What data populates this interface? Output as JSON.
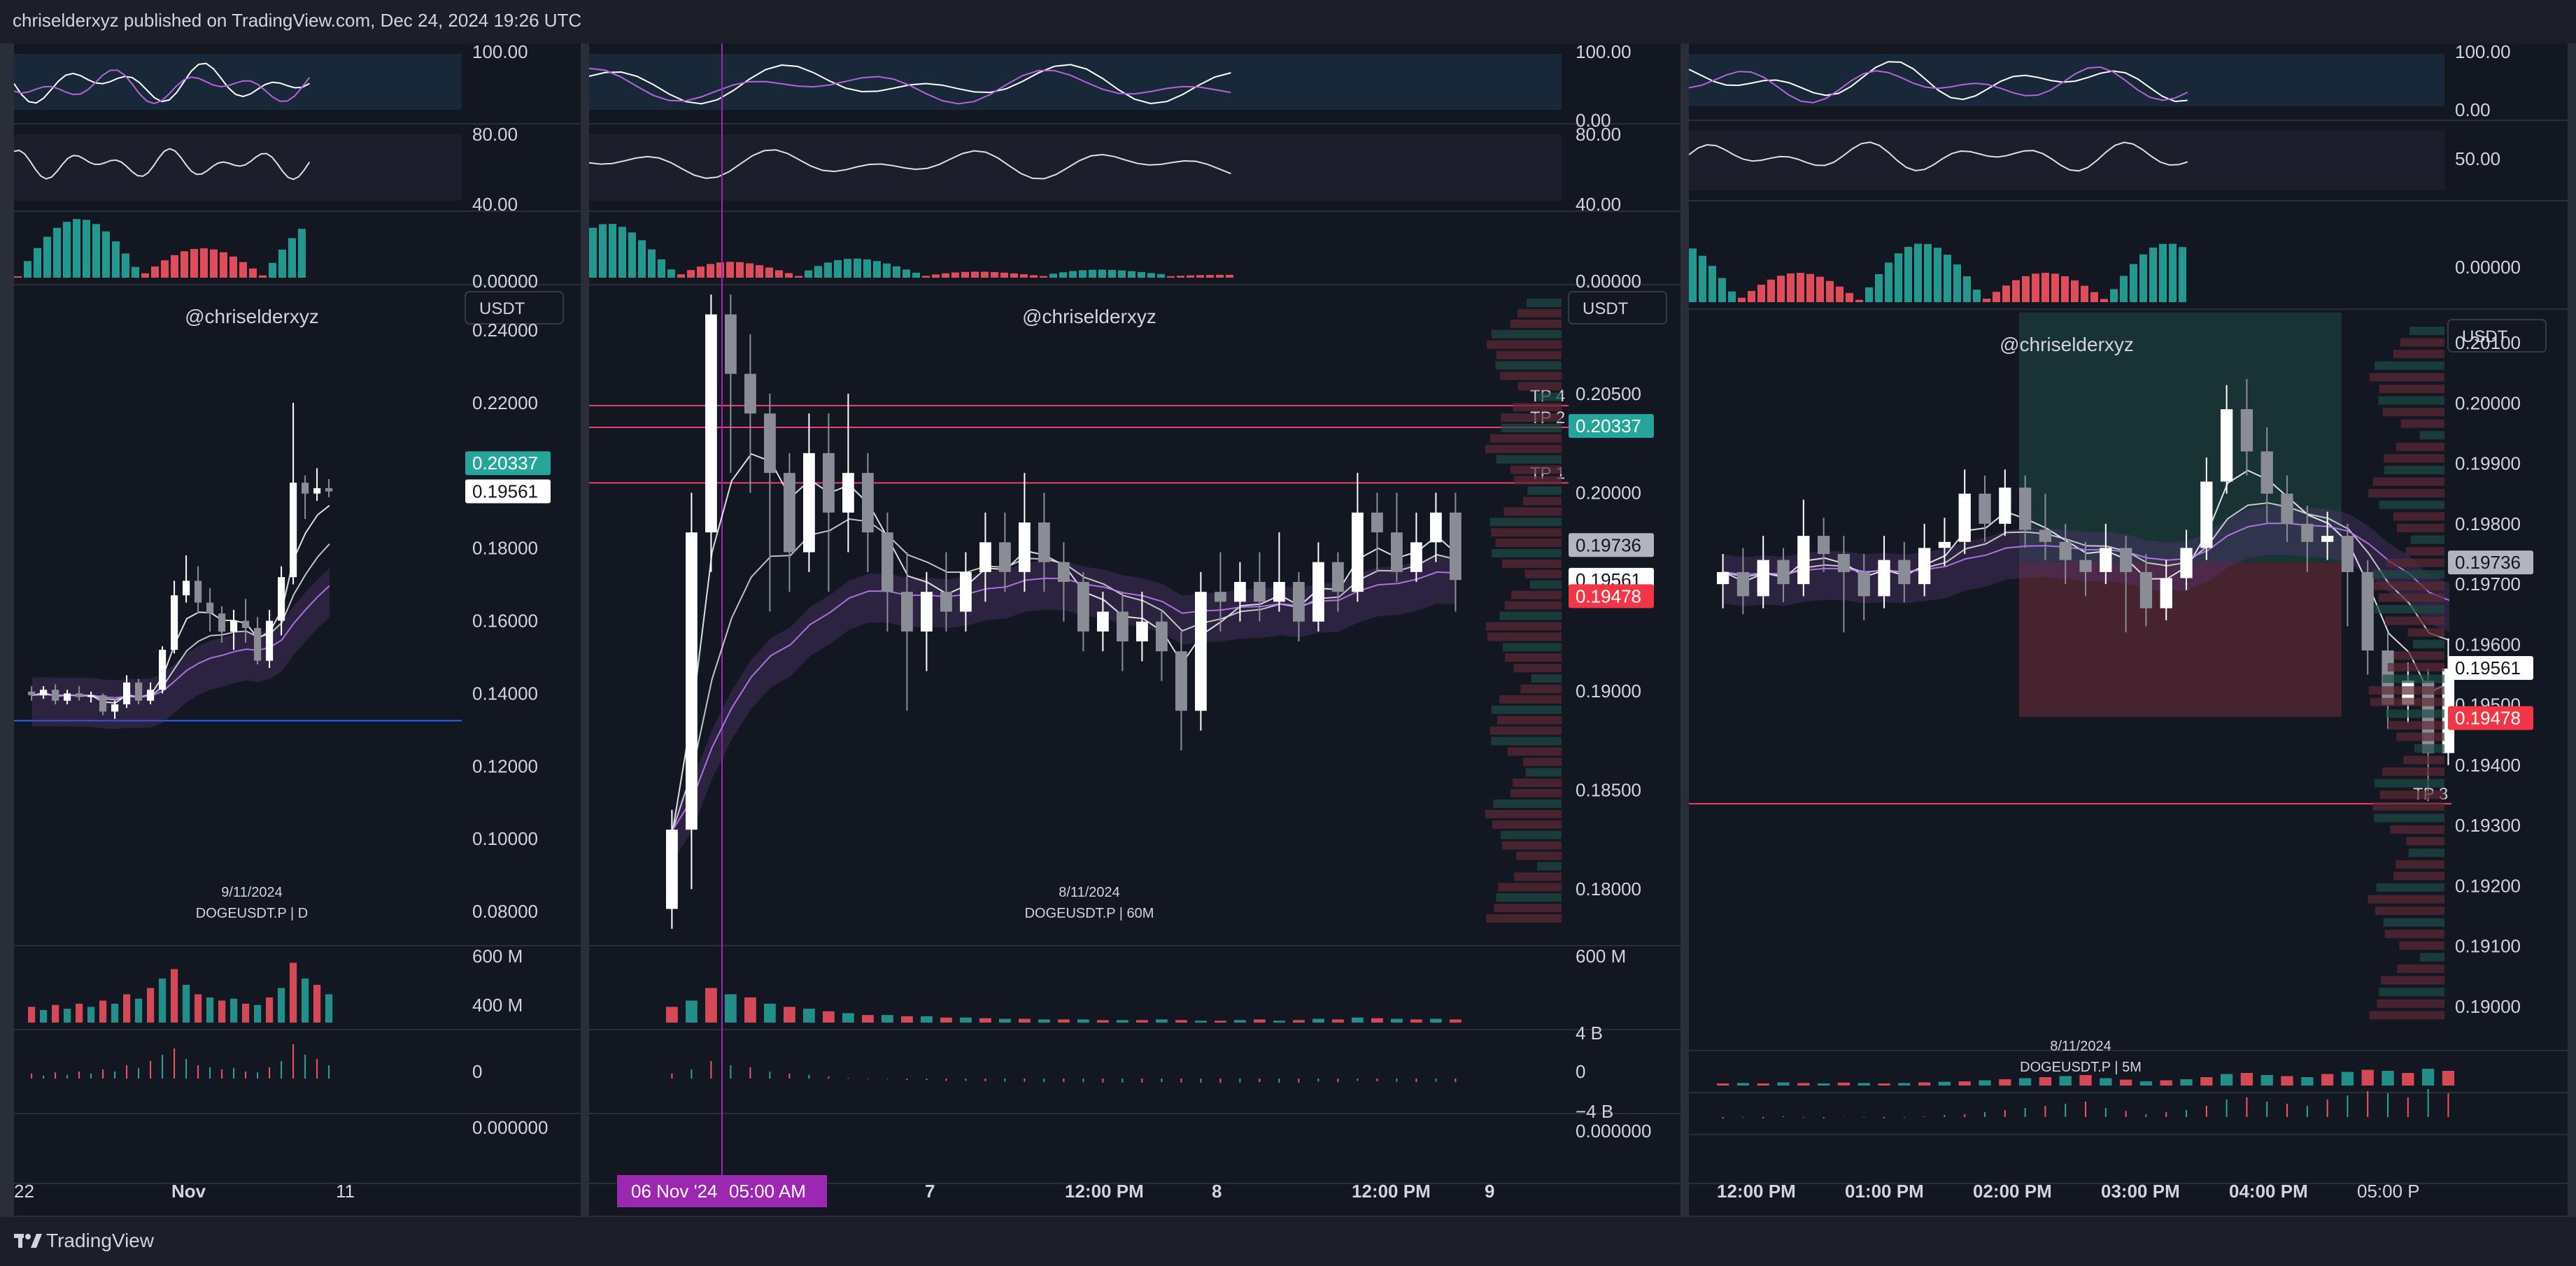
{
  "header": {
    "published_text": "chriselderxyz published on TradingView.com, Dec 24, 2024 19:26 UTC"
  },
  "footer": {
    "brand": "TradingView"
  },
  "colors": {
    "up": "#26a69a",
    "down": "#f7525f",
    "bg": "#131722",
    "line": "#f23d6d",
    "accent": "#9c27b0"
  },
  "chart_data": [
    {
      "type": "candlestick",
      "watermark": "@chriselderxyz",
      "symbol": "DOGEUSDT.P | D",
      "date_label": "9/11/2024",
      "currency": "USDT",
      "y_ticks": [
        "0.24000",
        "0.22000",
        "0.18000",
        "0.16000",
        "0.14000",
        "0.12000",
        "0.10000",
        "0.08000"
      ],
      "ylim": [
        0.0725,
        0.2525
      ],
      "price_tags": [
        {
          "value": 0.20337,
          "label": "0.20337",
          "style": "up"
        },
        {
          "value": 0.19561,
          "label": "0.19561",
          "style": "white"
        }
      ],
      "horizontal_lines": [
        {
          "value": 0.1325,
          "color": "#2962ff"
        }
      ],
      "x_ticks": [
        "22",
        "Nov",
        "11"
      ],
      "candles": [
        [
          0.1405,
          0.1395,
          0.142,
          0.138
        ],
        [
          0.1395,
          0.141,
          0.142,
          0.1385
        ],
        [
          0.141,
          0.138,
          0.1425,
          0.137
        ],
        [
          0.138,
          0.14,
          0.141,
          0.137
        ],
        [
          0.14,
          0.139,
          0.142,
          0.138
        ],
        [
          0.139,
          0.1395,
          0.1405,
          0.1375
        ],
        [
          0.1395,
          0.135,
          0.14,
          0.134
        ],
        [
          0.135,
          0.137,
          0.138,
          0.133
        ],
        [
          0.137,
          0.143,
          0.145,
          0.136
        ],
        [
          0.143,
          0.138,
          0.144,
          0.137
        ],
        [
          0.138,
          0.141,
          0.143,
          0.137
        ],
        [
          0.141,
          0.152,
          0.153,
          0.14
        ],
        [
          0.152,
          0.167,
          0.171,
          0.151
        ],
        [
          0.167,
          0.171,
          0.178,
          0.165
        ],
        [
          0.171,
          0.165,
          0.175,
          0.162
        ],
        [
          0.165,
          0.162,
          0.169,
          0.157
        ],
        [
          0.162,
          0.157,
          0.164,
          0.154
        ],
        [
          0.157,
          0.16,
          0.163,
          0.152
        ],
        [
          0.16,
          0.158,
          0.166,
          0.154
        ],
        [
          0.158,
          0.149,
          0.161,
          0.148
        ],
        [
          0.149,
          0.16,
          0.163,
          0.147
        ],
        [
          0.16,
          0.172,
          0.175,
          0.156
        ],
        [
          0.172,
          0.198,
          0.22,
          0.17
        ],
        [
          0.198,
          0.195,
          0.2,
          0.188
        ],
        [
          0.195,
          0.1965,
          0.202,
          0.193
        ],
        [
          0.1965,
          0.1956,
          0.199,
          0.194
        ]
      ],
      "volume": [
        0.25,
        0.2,
        0.28,
        0.22,
        0.3,
        0.25,
        0.35,
        0.3,
        0.45,
        0.38,
        0.55,
        0.7,
        0.85,
        0.6,
        0.45,
        0.4,
        0.35,
        0.38,
        0.3,
        0.28,
        0.4,
        0.55,
        0.95,
        0.7,
        0.6,
        0.45
      ],
      "osc_ticks": [
        "100.00",
        "80.00",
        "40.00",
        "0.00000"
      ],
      "vol_ticks": [
        "600 M",
        "400 M",
        "0",
        "0.000000"
      ]
    },
    {
      "type": "candlestick",
      "watermark": "@chriselderxyz",
      "symbol": "DOGEUSDT.P | 60M",
      "date_label": "8/11/2024",
      "currency": "USDT",
      "y_ticks": [
        "0.20500",
        "0.20000",
        "0.19000",
        "0.18500",
        "0.18000"
      ],
      "ylim": [
        0.1775,
        0.2105
      ],
      "price_tags": [
        {
          "value": 0.20337,
          "label": "0.20337",
          "style": "up"
        },
        {
          "value": 0.19736,
          "label": "0.19736",
          "style": "grey"
        },
        {
          "value": 0.19561,
          "label": "0.19561",
          "style": "white"
        },
        {
          "value": 0.19478,
          "label": "0.19478",
          "style": "down"
        }
      ],
      "levels": [
        {
          "value": 0.2044,
          "label": "TP 4"
        },
        {
          "value": 0.2033,
          "label": "TP 2"
        },
        {
          "value": 0.2005,
          "label": "TP 1"
        }
      ],
      "x_ticks": [
        "06 Nov '24",
        "05:00 AM",
        "7",
        "12:00 PM",
        "8",
        "12:00 PM",
        "9"
      ],
      "candles": [
        [
          0.179,
          0.183,
          0.184,
          0.178
        ],
        [
          0.183,
          0.198,
          0.2,
          0.18
        ],
        [
          0.198,
          0.209,
          0.21,
          0.196
        ],
        [
          0.209,
          0.206,
          0.21,
          0.201
        ],
        [
          0.206,
          0.204,
          0.208,
          0.2
        ],
        [
          0.204,
          0.201,
          0.205,
          0.194
        ],
        [
          0.201,
          0.197,
          0.202,
          0.195
        ],
        [
          0.197,
          0.202,
          0.204,
          0.196
        ],
        [
          0.202,
          0.199,
          0.204,
          0.195
        ],
        [
          0.199,
          0.201,
          0.205,
          0.197
        ],
        [
          0.201,
          0.198,
          0.202,
          0.196
        ],
        [
          0.198,
          0.195,
          0.199,
          0.193
        ],
        [
          0.195,
          0.193,
          0.197,
          0.189
        ],
        [
          0.193,
          0.195,
          0.196,
          0.191
        ],
        [
          0.195,
          0.194,
          0.197,
          0.193
        ],
        [
          0.194,
          0.196,
          0.197,
          0.193
        ],
        [
          0.196,
          0.1975,
          0.199,
          0.1945
        ],
        [
          0.1975,
          0.196,
          0.199,
          0.195
        ],
        [
          0.196,
          0.1985,
          0.201,
          0.195
        ],
        [
          0.1985,
          0.1965,
          0.2,
          0.195
        ],
        [
          0.1965,
          0.1955,
          0.1975,
          0.1935
        ],
        [
          0.1955,
          0.193,
          0.196,
          0.192
        ],
        [
          0.193,
          0.194,
          0.195,
          0.192
        ],
        [
          0.194,
          0.1925,
          0.195,
          0.191
        ],
        [
          0.1925,
          0.1935,
          0.195,
          0.1915
        ],
        [
          0.1935,
          0.192,
          0.194,
          0.1905
        ],
        [
          0.192,
          0.189,
          0.193,
          0.187
        ],
        [
          0.189,
          0.195,
          0.196,
          0.188
        ],
        [
          0.195,
          0.1945,
          0.197,
          0.193
        ],
        [
          0.1945,
          0.1955,
          0.1965,
          0.1935
        ],
        [
          0.1955,
          0.1945,
          0.197,
          0.1935
        ],
        [
          0.1945,
          0.1955,
          0.198,
          0.194
        ],
        [
          0.1955,
          0.1935,
          0.196,
          0.1925
        ],
        [
          0.1935,
          0.1965,
          0.1975,
          0.193
        ],
        [
          0.1965,
          0.195,
          0.197,
          0.194
        ],
        [
          0.195,
          0.199,
          0.201,
          0.1945
        ],
        [
          0.199,
          0.198,
          0.2,
          0.196
        ],
        [
          0.198,
          0.196,
          0.2,
          0.1955
        ],
        [
          0.196,
          0.1975,
          0.199,
          0.1955
        ],
        [
          0.1975,
          0.199,
          0.2,
          0.1965
        ],
        [
          0.199,
          0.1956,
          0.2,
          0.194
        ]
      ],
      "volume": [
        0.25,
        0.35,
        0.55,
        0.45,
        0.4,
        0.3,
        0.25,
        0.22,
        0.18,
        0.15,
        0.12,
        0.12,
        0.1,
        0.1,
        0.08,
        0.08,
        0.07,
        0.06,
        0.06,
        0.05,
        0.05,
        0.05,
        0.04,
        0.04,
        0.04,
        0.05,
        0.04,
        0.03,
        0.03,
        0.04,
        0.05,
        0.03,
        0.04,
        0.06,
        0.05,
        0.08,
        0.07,
        0.06,
        0.05,
        0.06,
        0.05
      ],
      "osc_ticks": [
        "100.00",
        "0.00",
        "80.00",
        "40.00",
        "0.00000"
      ],
      "vol_ticks": [
        "600 M",
        "4 B",
        "0",
        "−4 B",
        "0.000000"
      ]
    },
    {
      "type": "candlestick",
      "watermark": "@chriselderxyz",
      "symbol": "DOGEUSDT.P | 5M",
      "date_label": "8/11/2024",
      "currency": "USDT",
      "y_ticks": [
        "0.20100",
        "0.20000",
        "0.19900",
        "0.19800",
        "0.19700",
        "0.19600",
        "0.19500",
        "0.19400",
        "0.19300",
        "0.19200",
        "0.19100",
        "0.19000"
      ],
      "ylim": [
        0.1895,
        0.2015
      ],
      "price_tags": [
        {
          "value": 0.19736,
          "label": "0.19736",
          "style": "grey"
        },
        {
          "value": 0.19561,
          "label": "0.19561",
          "style": "white"
        },
        {
          "value": 0.19478,
          "label": "0.19478",
          "style": "down"
        }
      ],
      "levels": [
        {
          "value": 0.19336,
          "label": "TP 3"
        }
      ],
      "x_ticks": [
        "12:00 PM",
        "01:00 PM",
        "02:00 PM",
        "03:00 PM",
        "04:00 PM",
        "05:00 P"
      ],
      "candles": [
        [
          0.197,
          0.1972,
          0.1975,
          0.1966
        ],
        [
          0.1972,
          0.1968,
          0.1976,
          0.1965
        ],
        [
          0.1968,
          0.1974,
          0.1978,
          0.1966
        ],
        [
          0.1974,
          0.197,
          0.1976,
          0.1967
        ],
        [
          0.197,
          0.1978,
          0.1984,
          0.1968
        ],
        [
          0.1978,
          0.1975,
          0.1981,
          0.1972
        ],
        [
          0.1975,
          0.1972,
          0.1978,
          0.1962
        ],
        [
          0.1972,
          0.1968,
          0.1975,
          0.1964
        ],
        [
          0.1968,
          0.1974,
          0.1978,
          0.1966
        ],
        [
          0.1974,
          0.197,
          0.1977,
          0.1967
        ],
        [
          0.197,
          0.1976,
          0.198,
          0.1968
        ],
        [
          0.1976,
          0.1977,
          0.1981,
          0.1973
        ],
        [
          0.1977,
          0.1985,
          0.1989,
          0.1975
        ],
        [
          0.1985,
          0.198,
          0.1988,
          0.1977
        ],
        [
          0.198,
          0.1986,
          0.1989,
          0.1978
        ],
        [
          0.1986,
          0.1979,
          0.1988,
          0.1976
        ],
        [
          0.1979,
          0.1977,
          0.1985,
          0.1974
        ],
        [
          0.1977,
          0.1974,
          0.198,
          0.197
        ],
        [
          0.1974,
          0.1972,
          0.1977,
          0.1968
        ],
        [
          0.1972,
          0.1976,
          0.198,
          0.197
        ],
        [
          0.1976,
          0.1972,
          0.1978,
          0.1962
        ],
        [
          0.1972,
          0.1966,
          0.1975,
          0.1963
        ],
        [
          0.1966,
          0.1971,
          0.1974,
          0.1964
        ],
        [
          0.1971,
          0.1976,
          0.1979,
          0.1969
        ],
        [
          0.1976,
          0.1987,
          0.1991,
          0.1974
        ],
        [
          0.1987,
          0.1999,
          0.2003,
          0.1985
        ],
        [
          0.1999,
          0.1992,
          0.2004,
          0.1988
        ],
        [
          0.1992,
          0.1985,
          0.1996,
          0.198
        ],
        [
          0.1985,
          0.198,
          0.1988,
          0.1977
        ],
        [
          0.198,
          0.1977,
          0.1983,
          0.1972
        ],
        [
          0.1977,
          0.1978,
          0.1982,
          0.1974
        ],
        [
          0.1978,
          0.1972,
          0.198,
          0.1963
        ],
        [
          0.1972,
          0.1959,
          0.1974,
          0.1955
        ],
        [
          0.1959,
          0.195,
          0.1962,
          0.1946
        ],
        [
          0.195,
          0.1954,
          0.1957,
          0.1947
        ],
        [
          0.1954,
          0.1942,
          0.1956,
          0.1934
        ],
        [
          0.1942,
          0.1956,
          0.1961,
          0.194
        ]
      ],
      "volume": [
        0.1,
        0.12,
        0.1,
        0.15,
        0.12,
        0.1,
        0.14,
        0.12,
        0.1,
        0.12,
        0.15,
        0.18,
        0.2,
        0.25,
        0.3,
        0.35,
        0.4,
        0.45,
        0.5,
        0.35,
        0.28,
        0.2,
        0.25,
        0.3,
        0.4,
        0.55,
        0.6,
        0.5,
        0.45,
        0.4,
        0.55,
        0.65,
        0.75,
        0.7,
        0.6,
        0.8,
        0.7
      ],
      "osc_ticks": [
        "100.00",
        "0.00",
        "50.00",
        "0.00000"
      ],
      "vol_ticks": []
    }
  ]
}
